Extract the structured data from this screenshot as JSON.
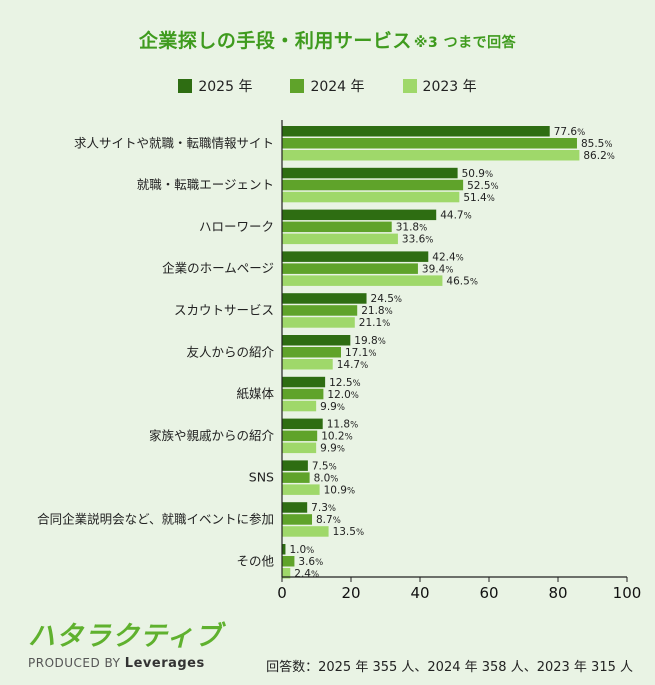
{
  "title": "企業探しの手段・利用サービス",
  "title_note": "※3 つまで回答",
  "logo": {
    "name": "ハタラクティブ",
    "produced_by": "PRODUCED BY",
    "brand": "Leverages"
  },
  "footer": "回答数：2025 年 355 人、2024 年 358 人、2023 年 315 人",
  "colors": {
    "title": "#3f9b1e",
    "s2025": "#2e6d12",
    "s2024": "#5fa32a",
    "s2023": "#9fd86a"
  },
  "chart_data": {
    "type": "bar",
    "orientation": "horizontal",
    "categories": [
      "求人サイトや就職・転職情報サイト",
      "就職・転職エージェント",
      "ハローワーク",
      "企業のホームページ",
      "スカウトサービス",
      "友人からの紹介",
      "紙媒体",
      "家族や親戚からの紹介",
      "SNS",
      "合同企業説明会など、就職イベントに参加",
      "その他"
    ],
    "series": [
      {
        "name": "2025 年",
        "color": "#2e6d12",
        "values": [
          77.6,
          50.9,
          44.7,
          42.4,
          24.5,
          19.8,
          12.5,
          11.8,
          7.5,
          7.3,
          1.0
        ]
      },
      {
        "name": "2024 年",
        "color": "#5fa32a",
        "values": [
          85.5,
          52.5,
          31.8,
          39.4,
          21.8,
          17.1,
          12.0,
          10.2,
          8.0,
          8.7,
          3.6
        ]
      },
      {
        "name": "2023 年",
        "color": "#9fd86a",
        "values": [
          86.2,
          51.4,
          33.6,
          46.5,
          21.1,
          14.7,
          9.9,
          9.9,
          10.9,
          13.5,
          2.4
        ]
      }
    ],
    "value_suffix": "%",
    "xlim": [
      0,
      100
    ],
    "xticks": [
      "0",
      "20",
      "40",
      "60",
      "80",
      "100"
    ],
    "legend_position": "top-center",
    "grid": false
  }
}
